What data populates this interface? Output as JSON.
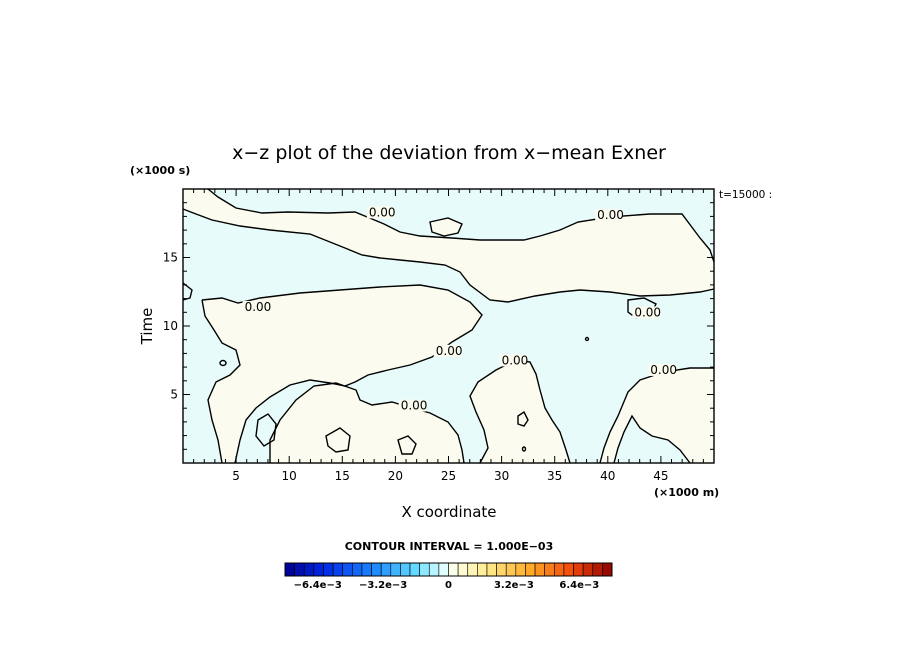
{
  "chart_data": {
    "type": "heatmap",
    "title": "x−z plot of the deviation from x−mean Exner",
    "xlabel": "X coordinate",
    "ylabel": "Time",
    "x_unit": "(×1000 m)",
    "y_unit": "(×1000 s)",
    "time_label": "t=15000 :",
    "xlim": [
      0,
      50
    ],
    "ylim": [
      0,
      20
    ],
    "x_ticks": [
      5,
      10,
      15,
      20,
      25,
      30,
      35,
      40,
      45
    ],
    "y_ticks": [
      5,
      10,
      15
    ],
    "contour_level": 0.0,
    "contour_interval_text": "CONTOUR INTERVAL = 1.000E−03",
    "contour_labels": [
      {
        "text": "0.00",
        "x": 17.5,
        "y": 18.0
      },
      {
        "text": "0.00",
        "x": 39.0,
        "y": 17.8
      },
      {
        "text": "0.00",
        "x": 5.8,
        "y": 11.1
      },
      {
        "text": "0.00",
        "x": 42.5,
        "y": 10.7
      },
      {
        "text": "0.00",
        "x": 23.8,
        "y": 7.9
      },
      {
        "text": "0.00",
        "x": 30.0,
        "y": 7.2
      },
      {
        "text": "0.00",
        "x": 44.0,
        "y": 6.5
      },
      {
        "text": "0.00",
        "x": 20.5,
        "y": 3.9
      }
    ],
    "colorbar": {
      "vmin": -0.008,
      "vmax": 0.008,
      "levels": 34,
      "tick_labels": [
        {
          "text": "−6.4e−3",
          "value": -0.0064
        },
        {
          "text": "−3.2e−3",
          "value": -0.0032
        },
        {
          "text": "0",
          "value": 0
        },
        {
          "text": "3.2e−3",
          "value": 0.0032
        },
        {
          "text": "6.4e−3",
          "value": 0.0064
        }
      ]
    },
    "field_colors": {
      "negative_near_zero": "#e8fbfb",
      "positive_near_zero": "#fbfcef",
      "contour": "#000000"
    }
  }
}
